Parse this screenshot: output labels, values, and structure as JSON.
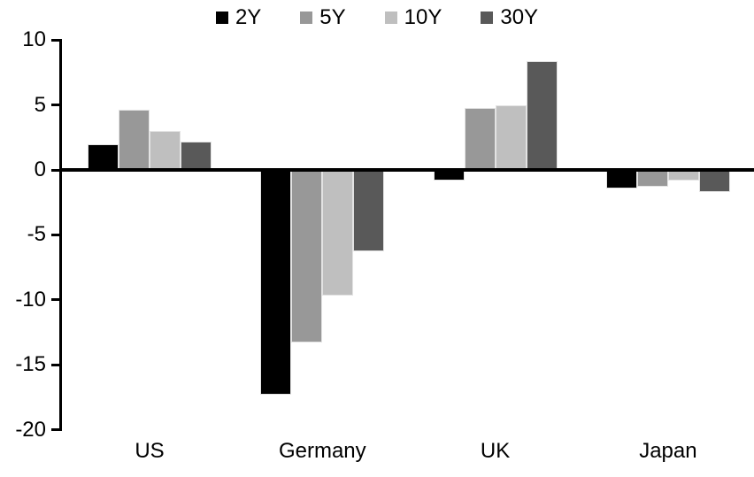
{
  "chart_data": {
    "type": "bar",
    "title": "",
    "subtitle": "",
    "categories": [
      "US",
      "Germany",
      "UK",
      "Japan"
    ],
    "series": [
      {
        "name": "2Y",
        "color": "#000000",
        "values": [
          2.0,
          -17.3,
          -0.8,
          -1.4
        ]
      },
      {
        "name": "5Y",
        "color": "#989898",
        "values": [
          4.6,
          -13.3,
          4.8,
          -1.3
        ]
      },
      {
        "name": "10Y",
        "color": "#bfbfbf",
        "values": [
          3.0,
          -9.7,
          5.0,
          -0.8
        ]
      },
      {
        "name": "30Y",
        "color": "#595959",
        "values": [
          2.2,
          -6.3,
          8.4,
          -1.7
        ]
      }
    ],
    "xlabel": "",
    "ylabel": "",
    "ylim": [
      -20,
      10
    ],
    "y_ticks": [
      10,
      5,
      0,
      -5,
      -10,
      -15,
      -20
    ],
    "y_tick_labels": [
      "10",
      "5",
      "0",
      "-5",
      "-10",
      "-15",
      "-20"
    ],
    "legend_position": "top-center",
    "grid": false,
    "background_color": "#ffffff",
    "axis_color": "#000000"
  }
}
